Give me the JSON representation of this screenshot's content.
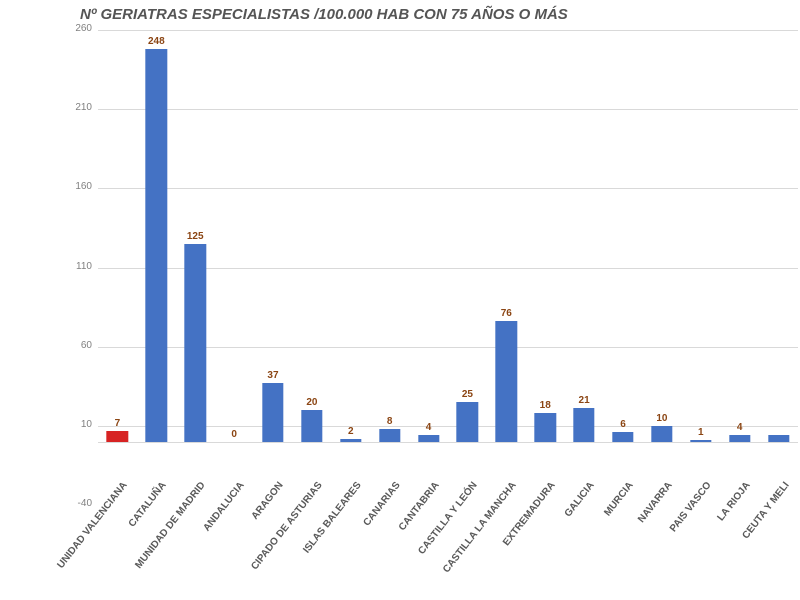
{
  "chart": {
    "type": "bar",
    "title": "Nº GERIATRAS ESPECIALISTAS /100.000 HAB CON 75 AÑOS O MÁS",
    "title_fontsize": 15,
    "title_color": "#555555",
    "background_color": "#ffffff",
    "grid_color": "#d9d9d9",
    "axis_label_color": "#808080",
    "xtick_color": "#595959",
    "xtick_fontsize": 10,
    "ytick_fontsize": 10,
    "value_label_color": "#8b4513",
    "value_label_fontsize": 10,
    "ylim_min": -40,
    "ylim_max": 260,
    "ytick_step": 50,
    "ytick_start": 10,
    "bar_width": 0.55,
    "categories": [
      "UNIDAD VALENCIANA",
      "CATALUÑA",
      "MUNIDAD DE MADRID",
      "ANDALUCIA",
      "ARAGON",
      "CIPADO DE ASTURIAS",
      "ISLAS BALEARES",
      "CANARIAS",
      "CANTABRIA",
      "CASTILLA Y LEÓN",
      "CASTILLA LA MANCHA",
      "EXTREMADURA",
      "GALICIA",
      "MURCIA",
      "NAVARRA",
      "PAIS VASCO",
      "LA RIOJA",
      "CEUTA Y MELI"
    ],
    "values": [
      7,
      248,
      125,
      0,
      37,
      20,
      2,
      8,
      4,
      25,
      76,
      18,
      21,
      6,
      10,
      1,
      4,
      4
    ],
    "value_labels": [
      "7",
      "248",
      "125",
      "0",
      "37",
      "20",
      "2",
      "8",
      "4",
      "25",
      "76",
      "18",
      "21",
      "6",
      "10",
      "1",
      "4",
      ""
    ],
    "bar_colors": [
      "#d72323",
      "#4472c4",
      "#4472c4",
      "#4472c4",
      "#4472c4",
      "#4472c4",
      "#4472c4",
      "#4472c4",
      "#4472c4",
      "#4472c4",
      "#4472c4",
      "#4472c4",
      "#4472c4",
      "#4472c4",
      "#4472c4",
      "#4472c4",
      "#4472c4",
      "#4472c4"
    ]
  }
}
